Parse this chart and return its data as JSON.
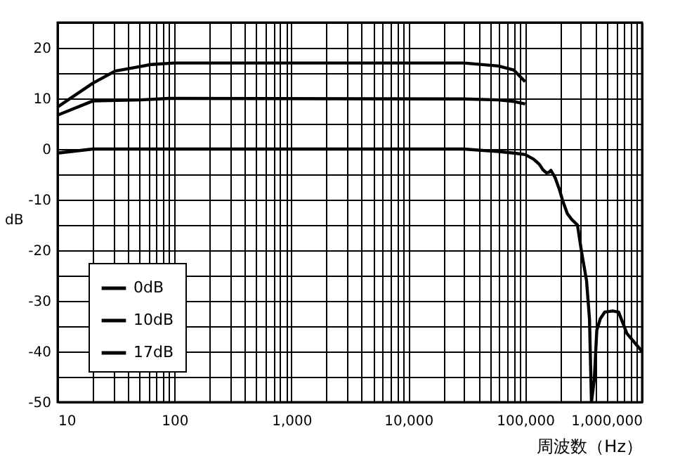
{
  "chart_data": {
    "type": "line",
    "xlabel": "周波数（Hz）",
    "ylabel": "dB",
    "log": "x",
    "grid": true,
    "legend": "bottom left",
    "xlim": [
      10,
      1000000
    ],
    "ylim": [
      -50,
      25
    ],
    "xticks": [
      10,
      {
        "value": 20,
        "label": null
      },
      {
        "value": 30,
        "label": null
      },
      {
        "value": 40,
        "label": null
      },
      {
        "value": 50,
        "label": null
      },
      {
        "value": 60,
        "label": null
      },
      {
        "value": 70,
        "label": null
      },
      {
        "value": 80,
        "label": null
      },
      {
        "value": 90,
        "label": null
      },
      100,
      {
        "value": 200,
        "label": null
      },
      {
        "value": 300,
        "label": null
      },
      {
        "value": 400,
        "label": null
      },
      {
        "value": 500,
        "label": null
      },
      {
        "value": 600,
        "label": null
      },
      {
        "value": 700,
        "label": null
      },
      {
        "value": 800,
        "label": null
      },
      {
        "value": 900,
        "label": null
      },
      {
        "value": 1000,
        "label": "1,000"
      },
      {
        "value": 2000,
        "label": null
      },
      {
        "value": 3000,
        "label": null
      },
      {
        "value": 4000,
        "label": null
      },
      {
        "value": 5000,
        "label": null
      },
      {
        "value": 6000,
        "label": null
      },
      {
        "value": 7000,
        "label": null
      },
      {
        "value": 8000,
        "label": null
      },
      {
        "value": 9000,
        "label": null
      },
      {
        "value": 10000,
        "label": "10,000"
      },
      {
        "value": 20000,
        "label": null
      },
      {
        "value": 30000,
        "label": null
      },
      {
        "value": 40000,
        "label": null
      },
      {
        "value": 50000,
        "label": null
      },
      {
        "value": 60000,
        "label": null
      },
      {
        "value": 70000,
        "label": null
      },
      {
        "value": 80000,
        "label": null
      },
      {
        "value": 90000,
        "label": null
      },
      {
        "value": 100000,
        "label": "100,000"
      },
      {
        "value": 200000,
        "label": null
      },
      {
        "value": 300000,
        "label": null
      },
      {
        "value": 400000,
        "label": null
      },
      {
        "value": 500000,
        "label": null
      },
      {
        "value": 600000,
        "label": null
      },
      {
        "value": 700000,
        "label": null
      },
      {
        "value": 800000,
        "label": null
      },
      {
        "value": 900000,
        "label": null
      },
      {
        "value": 1000000,
        "label": "1,000,000"
      }
    ],
    "yticks": [
      -50,
      {
        "value": -45,
        "label": null
      },
      -40,
      {
        "value": -35,
        "label": null
      },
      -30,
      {
        "value": -25,
        "label": null
      },
      -20,
      {
        "value": -15,
        "label": null
      },
      -10,
      {
        "value": -5,
        "label": null
      },
      0,
      {
        "value": 5,
        "label": null
      },
      10,
      {
        "value": 15,
        "label": null
      },
      20,
      {
        "value": 25,
        "label": null
      }
    ],
    "series": [
      {
        "name": "0dB",
        "color": "#000000",
        "x": [
          10,
          20,
          30000,
          59000,
          80000,
          100000,
          118000,
          132000,
          142000,
          152000,
          160000,
          166000,
          180000,
          195000,
          210000,
          230000,
          250000,
          280000,
          305000,
          335000,
          355000,
          369000,
          390000,
          410000,
          440000,
          480000,
          560000,
          630000,
          740000,
          1000000
        ],
        "values": [
          -0.8,
          0,
          0,
          -0.5,
          -0.8,
          -1.1,
          -2,
          -3,
          -4.1,
          -4.7,
          -4.6,
          -4.2,
          -5.6,
          -7.8,
          -10.3,
          -12.8,
          -13.9,
          -15,
          -20.6,
          -26,
          -33.6,
          -50,
          -45.6,
          -35.8,
          -33.5,
          -32.2,
          -32,
          -32.2,
          -36.4,
          -40
        ]
      },
      {
        "name": "10dB",
        "color": "#000000",
        "x": [
          10,
          20,
          51,
          89,
          30000,
          59000,
          80000,
          100000
        ],
        "values": [
          6.7,
          9.5,
          9.7,
          10,
          9.9,
          9.7,
          9.4,
          8.9
        ]
      },
      {
        "name": "17dB",
        "color": "#000000",
        "x": [
          10,
          20,
          31,
          51,
          63,
          100,
          30000,
          59000,
          80000,
          100000
        ],
        "values": [
          8.3,
          13,
          15.4,
          16.3,
          16.7,
          17,
          17,
          16.4,
          15.6,
          13.3
        ]
      }
    ]
  }
}
